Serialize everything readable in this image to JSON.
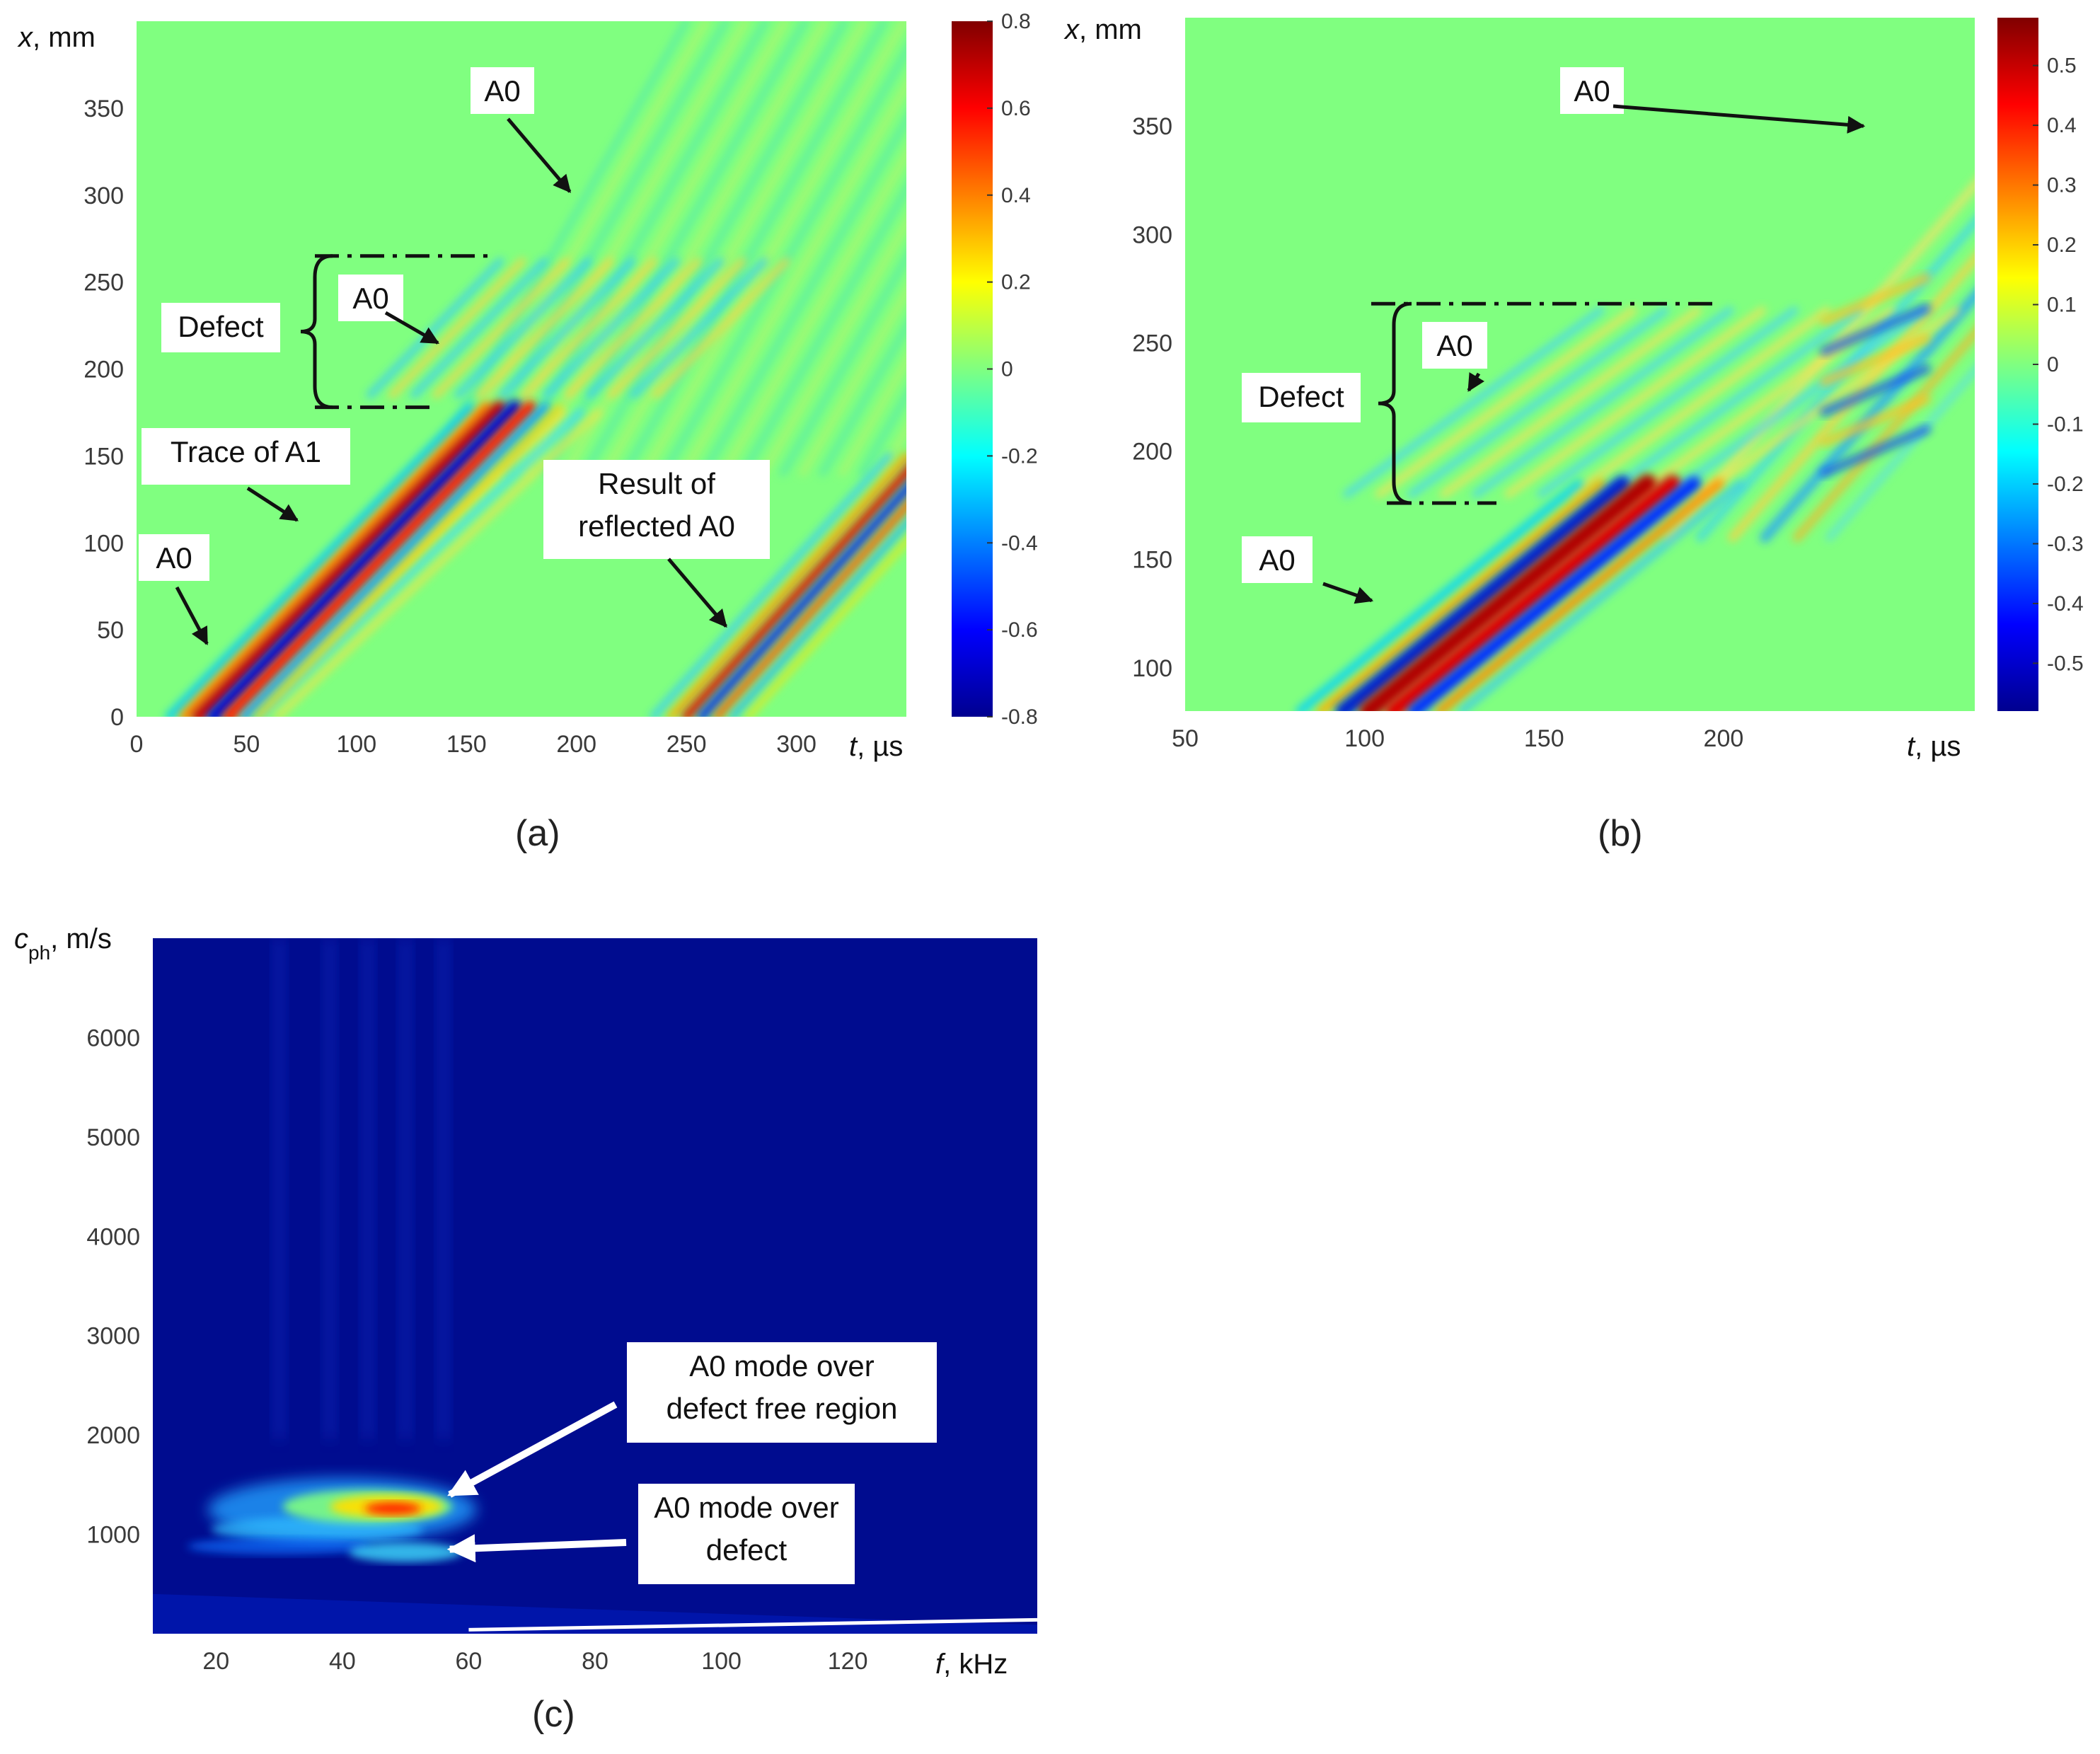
{
  "chart_data": [
    {
      "id": "a",
      "type": "heatmap",
      "panel_label": "(a)",
      "xlabel": {
        "var": "t",
        "unit": ", µs"
      },
      "ylabel": {
        "var": "x",
        "unit": ", mm"
      },
      "xlim": [
        0,
        350
      ],
      "ylim": [
        0,
        400
      ],
      "xticks": [
        0,
        50,
        100,
        150,
        200,
        250,
        300
      ],
      "yticks": [
        0,
        50,
        100,
        150,
        200,
        250,
        300,
        350
      ],
      "colorbar": {
        "min": -0.8,
        "max": 0.8,
        "ticks": [
          "0.8",
          "0.6",
          "0.4",
          "0.2",
          "0",
          "-0.2",
          "-0.4",
          "-0.6",
          "-0.8"
        ],
        "tick_values": [
          0.8,
          0.6,
          0.4,
          0.2,
          0,
          -0.2,
          -0.4,
          -0.6,
          -0.8
        ],
        "colormap": "jet"
      },
      "defect_range_mm": [
        178,
        265
      ],
      "annotations": [
        {
          "text": "A0",
          "at": [
            197,
            302
          ]
        },
        {
          "text": "A0",
          "at": [
            137,
            215
          ]
        },
        {
          "text": "Defect"
        },
        {
          "text": "Trace of A1",
          "at": [
            73,
            113
          ]
        },
        {
          "text": "A0",
          "at": [
            32,
            42
          ]
        },
        {
          "text": "Result of",
          "at": [
            268,
            52
          ]
        },
        {
          "text": "reflected A0"
        }
      ]
    },
    {
      "id": "b",
      "type": "heatmap",
      "panel_label": "(b)",
      "xlabel": {
        "var": "t",
        "unit": ", µs"
      },
      "ylabel": {
        "var": "x",
        "unit": ", mm"
      },
      "xlim": [
        50,
        270
      ],
      "ylim": [
        80,
        400
      ],
      "xticks": [
        50,
        100,
        150,
        200
      ],
      "yticks": [
        100,
        150,
        200,
        250,
        300,
        350
      ],
      "colorbar": {
        "min": -0.58,
        "max": 0.58,
        "ticks": [
          "0.5",
          "0.4",
          "0.3",
          "0.2",
          "0.1",
          "0",
          "-0.1",
          "-0.2",
          "-0.3",
          "-0.4",
          "-0.5"
        ],
        "tick_values": [
          0.5,
          0.4,
          0.3,
          0.2,
          0.1,
          0,
          -0.1,
          -0.2,
          -0.3,
          -0.4,
          -0.5
        ],
        "colormap": "jet"
      },
      "defect_range_mm": [
        176,
        268
      ],
      "annotations": [
        {
          "text": "A0",
          "at": [
            239,
            350
          ]
        },
        {
          "text": "A0",
          "at": [
            129,
            228
          ]
        },
        {
          "text": "Defect"
        },
        {
          "text": "A0",
          "at": [
            102,
            131
          ]
        }
      ]
    },
    {
      "id": "c",
      "type": "heatmap",
      "panel_label": "(c)",
      "xlabel": {
        "var": "f",
        "unit": ", kHz"
      },
      "ylabel": {
        "var": "c",
        "sub": "ph",
        "unit": ", m/s"
      },
      "xlim": [
        10,
        150
      ],
      "ylim": [
        0,
        7000
      ],
      "xticks": [
        20,
        40,
        60,
        80,
        100,
        120
      ],
      "yticks": [
        1000,
        2000,
        3000,
        4000,
        5000,
        6000
      ],
      "annotations": [
        {
          "text": "A0 mode over",
          "at": [
            57,
            1400
          ]
        },
        {
          "text": "defect free region"
        },
        {
          "text": "A0 mode over",
          "at": [
            57,
            850
          ]
        },
        {
          "text": "defect"
        }
      ]
    }
  ]
}
